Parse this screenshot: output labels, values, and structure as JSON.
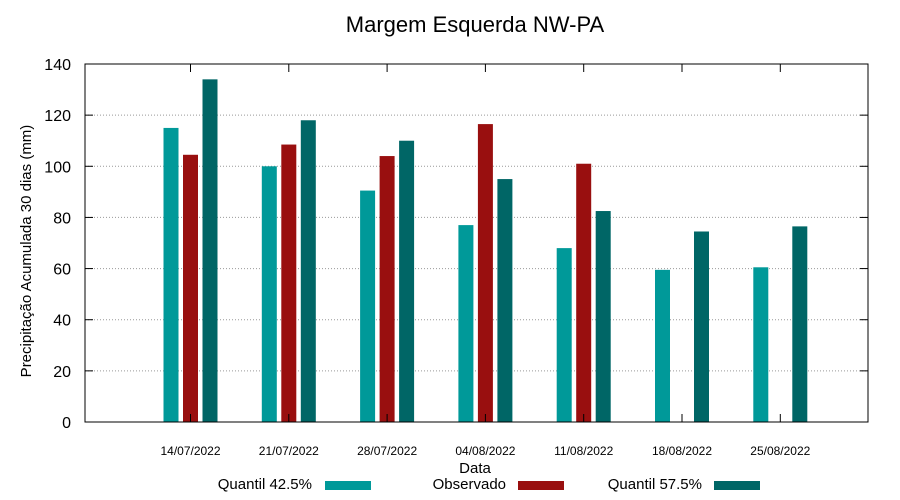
{
  "chart_data": {
    "type": "bar",
    "title": "Margem Esquerda NW-PA",
    "xlabel": "Data",
    "ylabel": "Precipitação Acumulada 30 dias (mm)",
    "ylim": [
      0,
      140
    ],
    "yticks": [
      0,
      20,
      40,
      60,
      80,
      100,
      120,
      140
    ],
    "grid": true,
    "legend_position": "bottom",
    "categories": [
      "14/07/2022",
      "21/07/2022",
      "28/07/2022",
      "04/08/2022",
      "11/08/2022",
      "18/08/2022",
      "25/08/2022"
    ],
    "series": [
      {
        "name": "Quantil 42.5%",
        "color": "#009999",
        "values": [
          115,
          100,
          90.5,
          77,
          68,
          59.5,
          60.5
        ]
      },
      {
        "name": "Observado",
        "color": "#990f0f",
        "values": [
          104.5,
          108.5,
          104,
          116.5,
          101,
          null,
          null
        ]
      },
      {
        "name": "Quantil 57.5%",
        "color": "#006666",
        "values": [
          134,
          118,
          110,
          95,
          82.5,
          74.5,
          76.5
        ]
      }
    ]
  }
}
